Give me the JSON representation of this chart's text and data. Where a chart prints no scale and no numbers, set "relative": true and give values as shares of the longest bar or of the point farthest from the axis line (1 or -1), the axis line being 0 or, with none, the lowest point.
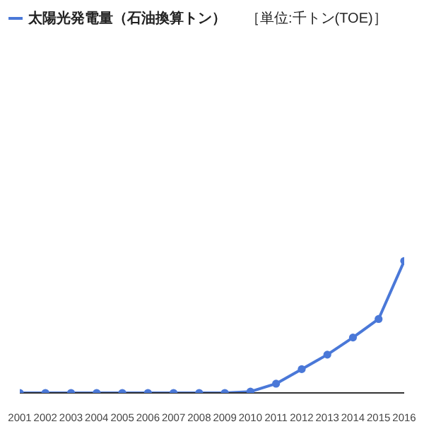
{
  "chart_data": {
    "type": "line",
    "relative": true,
    "categories": [
      "2001",
      "2002",
      "2003",
      "2004",
      "2005",
      "2006",
      "2007",
      "2008",
      "2009",
      "2010",
      "2011",
      "2012",
      "2013",
      "2014",
      "2015",
      "2016"
    ],
    "series": [
      {
        "name": "太陽光発電量（石油換算トン）",
        "color": "#4a78d8",
        "values": [
          0,
          0,
          0,
          0,
          0,
          0,
          0,
          0,
          0,
          0.01,
          0.07,
          0.18,
          0.29,
          0.42,
          0.56,
          1
        ]
      }
    ],
    "annotations": [
      "［単位:千トン(TOE)］"
    ],
    "legend": "top left",
    "marker": "circle"
  }
}
